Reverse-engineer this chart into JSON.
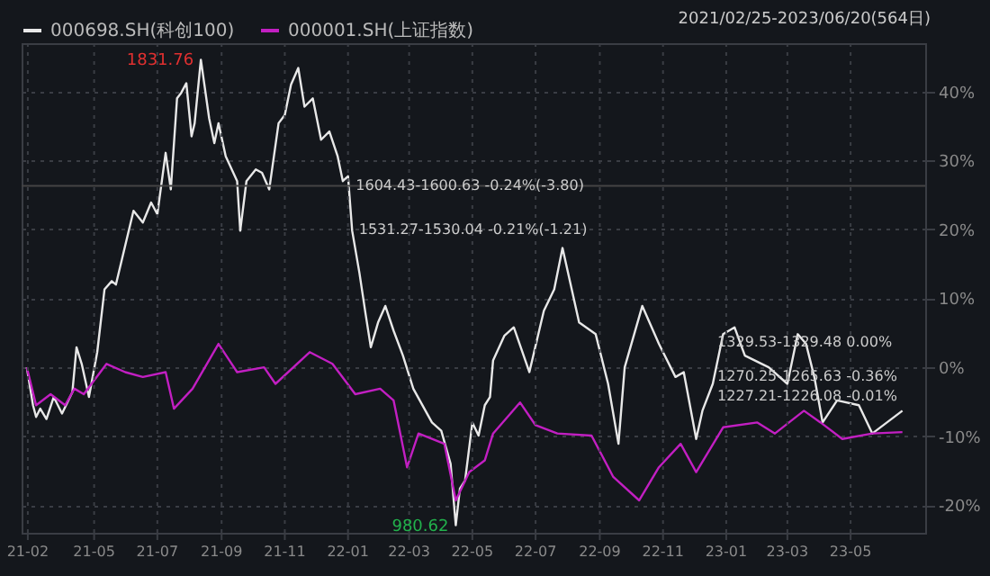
{
  "chart_data": {
    "type": "line",
    "xlim": [
      "2021-02-20",
      "2023-07-12"
    ],
    "ylim": [
      -24,
      47
    ],
    "xticks": [
      {
        "value": "2021-02-26",
        "label": "21-02"
      },
      {
        "value": "2021-05-01",
        "label": "21-05"
      },
      {
        "value": "2021-07-01",
        "label": "21-07"
      },
      {
        "value": "2021-09-01",
        "label": "21-09"
      },
      {
        "value": "2021-11-01",
        "label": "21-11"
      },
      {
        "value": "2022-01-01",
        "label": "22-01"
      },
      {
        "value": "2022-03-01",
        "label": "22-03"
      },
      {
        "value": "2022-05-01",
        "label": "22-05"
      },
      {
        "value": "2022-07-01",
        "label": "22-07"
      },
      {
        "value": "2022-09-01",
        "label": "22-09"
      },
      {
        "value": "2022-11-01",
        "label": "22-11"
      },
      {
        "value": "2023-01-01",
        "label": "23-01"
      },
      {
        "value": "2023-03-01",
        "label": "23-03"
      },
      {
        "value": "2023-05-01",
        "label": "23-05"
      }
    ],
    "yticks": [
      {
        "value": -20,
        "label": "-20%"
      },
      {
        "value": -10,
        "label": "-10%"
      },
      {
        "value": 0,
        "label": "0%"
      },
      {
        "value": 10,
        "label": "10%"
      },
      {
        "value": 20,
        "label": "20%"
      },
      {
        "value": 30,
        "label": "30%"
      },
      {
        "value": 40,
        "label": "40%"
      }
    ],
    "grid": true,
    "legend": "top left",
    "line_style": "solid",
    "marker": "none",
    "series": [
      {
        "name": "000698.SH(科创100)",
        "color": "#e8e8e8",
        "x": [
          "2021-02-25",
          "2021-03-03",
          "2021-03-06",
          "2021-03-10",
          "2021-03-16",
          "2021-03-23",
          "2021-03-31",
          "2021-04-10",
          "2021-04-14",
          "2021-04-19",
          "2021-04-26",
          "2021-05-04",
          "2021-05-11",
          "2021-05-18",
          "2021-05-22",
          "2021-06-08",
          "2021-06-17",
          "2021-06-25",
          "2021-07-01",
          "2021-07-09",
          "2021-07-14",
          "2021-07-20",
          "2021-07-24",
          "2021-07-29",
          "2021-08-03",
          "2021-08-06",
          "2021-08-12",
          "2021-08-20",
          "2021-08-25",
          "2021-08-29",
          "2021-09-05",
          "2021-09-16",
          "2021-09-19",
          "2021-09-25",
          "2021-10-04",
          "2021-10-10",
          "2021-10-17",
          "2021-10-26",
          "2021-11-01",
          "2021-11-07",
          "2021-11-14",
          "2021-11-20",
          "2021-11-28",
          "2021-12-06",
          "2021-12-14",
          "2021-12-22",
          "2021-12-27",
          "2022-01-01",
          "2022-01-05",
          "2022-01-12",
          "2022-01-18",
          "2022-01-23",
          "2022-01-30",
          "2022-02-06",
          "2022-02-14",
          "2022-02-23",
          "2022-03-05",
          "2022-03-23",
          "2022-04-01",
          "2022-04-10",
          "2022-04-15",
          "2022-04-19",
          "2022-04-24",
          "2022-05-01",
          "2022-05-07",
          "2022-05-13",
          "2022-05-18",
          "2022-05-21",
          "2022-06-01",
          "2022-06-10",
          "2022-06-25",
          "2022-07-09",
          "2022-07-19",
          "2022-07-27",
          "2022-08-12",
          "2022-08-28",
          "2022-09-09",
          "2022-09-19",
          "2022-09-25",
          "2022-10-12",
          "2022-10-28",
          "2022-11-13",
          "2022-11-21",
          "2022-12-03",
          "2022-12-09",
          "2022-12-19",
          "2022-12-29",
          "2023-01-09",
          "2023-01-19",
          "2023-02-11",
          "2023-03-01",
          "2023-03-11",
          "2023-03-19",
          "2023-03-27",
          "2023-04-04",
          "2023-04-18",
          "2023-05-09",
          "2023-05-22",
          "2023-06-20"
        ],
        "values": [
          0,
          -5.5,
          -7.2,
          -6.0,
          -7.5,
          -4.3,
          -6.7,
          -3.6,
          2.9,
          0.5,
          -4.3,
          2.2,
          11.3,
          12.5,
          12.0,
          22.7,
          21.0,
          23.9,
          22.2,
          31.1,
          25.8,
          39.0,
          39.8,
          41.2,
          33.5,
          35.4,
          44.6,
          36.1,
          32.5,
          35.4,
          30.6,
          27.0,
          19.8,
          27.0,
          28.7,
          28.2,
          25.8,
          35.4,
          36.6,
          41.0,
          43.4,
          37.8,
          39.0,
          33.0,
          34.2,
          30.6,
          27.0,
          27.7,
          19.8,
          13.7,
          7.7,
          2.9,
          6.5,
          8.9,
          5.3,
          1.7,
          -3.1,
          -8.0,
          -9.2,
          -14.0,
          -22.9,
          -17.6,
          -16.4,
          -8.0,
          -9.9,
          -5.5,
          -4.3,
          1.0,
          4.6,
          5.8,
          -0.7,
          8.2,
          11.3,
          17.3,
          6.5,
          4.8,
          -2.4,
          -11.1,
          0,
          8.9,
          3.4,
          -1.4,
          -0.7,
          -10.4,
          -6.3,
          -2.4,
          4.8,
          5.8,
          1.7,
          0,
          -2.4,
          4.8,
          3.4,
          -1.4,
          -8.0,
          -4.8,
          -5.5,
          -9.6,
          -6.3
        ]
      },
      {
        "name": "000001.SH(上证指数)",
        "color": "#c21fc2",
        "x": [
          "2021-02-25",
          "2021-03-06",
          "2021-03-20",
          "2021-04-03",
          "2021-04-12",
          "2021-04-21",
          "2021-05-13",
          "2021-05-31",
          "2021-06-17",
          "2021-07-09",
          "2021-07-17",
          "2021-08-04",
          "2021-08-29",
          "2021-09-16",
          "2021-10-12",
          "2021-10-23",
          "2021-11-25",
          "2021-12-17",
          "2022-01-08",
          "2022-02-01",
          "2022-02-14",
          "2022-02-27",
          "2022-03-10",
          "2022-04-04",
          "2022-04-15",
          "2022-04-28",
          "2022-05-13",
          "2022-05-21",
          "2022-06-16",
          "2022-07-01",
          "2022-07-22",
          "2022-08-24",
          "2022-09-14",
          "2022-10-09",
          "2022-10-28",
          "2022-11-18",
          "2022-12-03",
          "2022-12-29",
          "2023-01-31",
          "2023-02-17",
          "2023-03-17",
          "2023-04-02",
          "2023-04-23",
          "2023-05-22",
          "2023-06-20"
        ],
        "values": [
          0,
          -5.5,
          -3.9,
          -5.5,
          -3.1,
          -3.9,
          0.5,
          -0.7,
          -1.4,
          -0.7,
          -6.0,
          -3.1,
          3.4,
          -0.7,
          0,
          -2.4,
          2.2,
          0.5,
          -3.9,
          -3.1,
          -4.8,
          -14.5,
          -9.6,
          -11.1,
          -19.3,
          -15.2,
          -13.5,
          -9.6,
          -5.1,
          -8.4,
          -9.6,
          -9.9,
          -15.9,
          -19.3,
          -14.5,
          -11.1,
          -15.2,
          -8.7,
          -8.0,
          -9.6,
          -6.3,
          -8.0,
          -10.4,
          -9.6,
          -9.4
        ]
      }
    ],
    "ref_lines": [
      {
        "axis": "y",
        "value": 26.3,
        "color": "#444444"
      }
    ],
    "annotations": [
      {
        "text": "1831.76",
        "x": "2021-08-12",
        "y": 44.6
      },
      {
        "text": "980.62",
        "x": "2022-04-15",
        "y": -22.9
      },
      {
        "text": "1604.43-1600.63 -0.24%(-3.80)",
        "x": "2022-01-05",
        "y": 26.3
      },
      {
        "text": "1531.27-1530.04 -0.21%(-1.21)",
        "x": "2022-01-08",
        "y": 19.8
      },
      {
        "text": "1329.53-1329.48 0.00%",
        "x": "2022-12-20",
        "y": 3.6
      },
      {
        "text": "1270.25-1265.63 -0.36%",
        "x": "2022-12-20",
        "y": -1.4
      },
      {
        "text": "1227.21-1226.08 -0.01%",
        "x": "2022-12-20",
        "y": -4.3
      },
      "2021/02/25-2023/06/20(564日)"
    ]
  }
}
